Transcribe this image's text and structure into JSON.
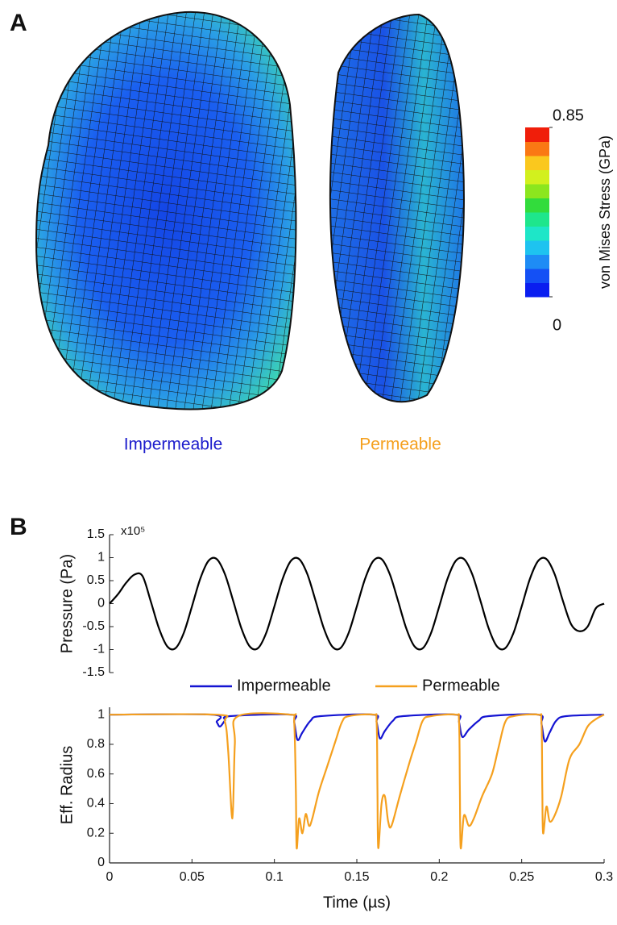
{
  "panel_a": {
    "label": "A",
    "mesh_labels": [
      "Impermeable",
      "Permeable"
    ]
  },
  "colorbar": {
    "label": "von Mises Stress (GPa)",
    "lim": [
      0,
      0.85
    ],
    "ticks": [
      0,
      0.85
    ],
    "colors": [
      "#0a1ef0",
      "#1450f5",
      "#1e8cf5",
      "#1ec3f0",
      "#1ee6c8",
      "#1ee68c",
      "#32dc3c",
      "#8ce61e",
      "#d2f01e",
      "#fac81e",
      "#fa7814",
      "#f01e0a"
    ]
  },
  "panel_b": {
    "label": "B"
  },
  "chart_data": [
    {
      "type": "line",
      "y_label": "Pressure (Pa)",
      "axis_multiplier": "x10⁵",
      "x": [
        0,
        0.005,
        0.01,
        0.015,
        0.02,
        0.025,
        0.03,
        0.035,
        0.04,
        0.045,
        0.05,
        0.055,
        0.06,
        0.065,
        0.07,
        0.075,
        0.08,
        0.085,
        0.09,
        0.095,
        0.1,
        0.105,
        0.11,
        0.115,
        0.12,
        0.125,
        0.13,
        0.135,
        0.14,
        0.145,
        0.15,
        0.155,
        0.16,
        0.165,
        0.17,
        0.175,
        0.18,
        0.185,
        0.19,
        0.195,
        0.2,
        0.205,
        0.21,
        0.215,
        0.22,
        0.225,
        0.23,
        0.235,
        0.24,
        0.245,
        0.25,
        0.255,
        0.26,
        0.265,
        0.27,
        0.275,
        0.28,
        0.285,
        0.29,
        0.295,
        0.3
      ],
      "series": [
        {
          "color": "#000000",
          "values": [
            0,
            0.2,
            0.45,
            0.63,
            0.6,
            0.05,
            -0.54,
            -0.93,
            -0.97,
            -0.64,
            -0.06,
            0.54,
            0.93,
            0.97,
            0.64,
            0.06,
            -0.54,
            -0.93,
            -0.97,
            -0.64,
            -0.06,
            0.54,
            0.93,
            0.97,
            0.64,
            0.06,
            -0.54,
            -0.93,
            -0.97,
            -0.64,
            -0.06,
            0.54,
            0.93,
            0.97,
            0.64,
            0.06,
            -0.54,
            -0.93,
            -0.97,
            -0.64,
            -0.06,
            0.54,
            0.93,
            0.97,
            0.64,
            0.06,
            -0.54,
            -0.93,
            -0.97,
            -0.64,
            -0.06,
            0.54,
            0.93,
            0.97,
            0.64,
            0.06,
            -0.45,
            -0.6,
            -0.5,
            -0.1,
            0
          ]
        }
      ],
      "xlim": [
        0,
        0.3
      ],
      "ylim": [
        -1.5,
        1.5
      ],
      "yticks": [
        1.5,
        1,
        0.5,
        0,
        -0.5,
        -1,
        -1.5
      ]
    },
    {
      "type": "line",
      "y_label": "Eff. Radius",
      "x_label": "Time (µs)",
      "series": [
        {
          "name": "Impermeable",
          "color": "#1414d2",
          "x": [
            0,
            0.062,
            0.065,
            0.067,
            0.07,
            0.073,
            0.11,
            0.112,
            0.114,
            0.117,
            0.122,
            0.128,
            0.16,
            0.162,
            0.164,
            0.167,
            0.172,
            0.178,
            0.21,
            0.212,
            0.214,
            0.218,
            0.224,
            0.23,
            0.26,
            0.262,
            0.264,
            0.267,
            0.271,
            0.277,
            0.3
          ],
          "values": [
            1,
            1,
            0.95,
            0.92,
            0.96,
            0.99,
            1,
            0.95,
            0.83,
            0.88,
            0.96,
            0.99,
            1,
            0.95,
            0.84,
            0.89,
            0.96,
            0.99,
            1,
            0.95,
            0.85,
            0.9,
            0.96,
            0.99,
            1,
            0.94,
            0.82,
            0.88,
            0.96,
            0.99,
            1
          ]
        },
        {
          "name": "Permeable",
          "color": "#f5a01e",
          "x": [
            0,
            0.065,
            0.07,
            0.072,
            0.0745,
            0.076,
            0.078,
            0.11,
            0.112,
            0.113,
            0.1135,
            0.115,
            0.117,
            0.119,
            0.121,
            0.123,
            0.127,
            0.132,
            0.137,
            0.141,
            0.145,
            0.16,
            0.162,
            0.1625,
            0.163,
            0.165,
            0.167,
            0.169,
            0.171,
            0.176,
            0.182,
            0.186,
            0.19,
            0.195,
            0.21,
            0.212,
            0.2125,
            0.213,
            0.215,
            0.218,
            0.221,
            0.226,
            0.232,
            0.236,
            0.24,
            0.245,
            0.26,
            0.262,
            0.2625,
            0.263,
            0.265,
            0.267,
            0.27,
            0.274,
            0.279,
            0.285,
            0.29,
            0.295,
            0.3
          ],
          "values": [
            1,
            1,
            0.95,
            0.75,
            0.3,
            0.8,
            0.99,
            1,
            0.95,
            0.5,
            0.1,
            0.3,
            0.2,
            0.33,
            0.25,
            0.3,
            0.48,
            0.65,
            0.82,
            0.95,
            0.99,
            1,
            0.95,
            0.5,
            0.1,
            0.4,
            0.45,
            0.28,
            0.25,
            0.45,
            0.68,
            0.82,
            0.96,
            0.99,
            1,
            0.95,
            0.5,
            0.1,
            0.32,
            0.25,
            0.3,
            0.45,
            0.6,
            0.78,
            0.95,
            0.99,
            1,
            0.95,
            0.5,
            0.2,
            0.38,
            0.28,
            0.32,
            0.45,
            0.7,
            0.8,
            0.92,
            0.97,
            1
          ]
        }
      ],
      "xlim": [
        0,
        0.3
      ],
      "ylim": [
        0,
        1.05
      ],
      "xticks": [
        0,
        0.05,
        0.1,
        0.15,
        0.2,
        0.25,
        0.3
      ],
      "yticks": [
        0,
        0.2,
        0.4,
        0.6,
        0.8,
        1
      ]
    }
  ]
}
